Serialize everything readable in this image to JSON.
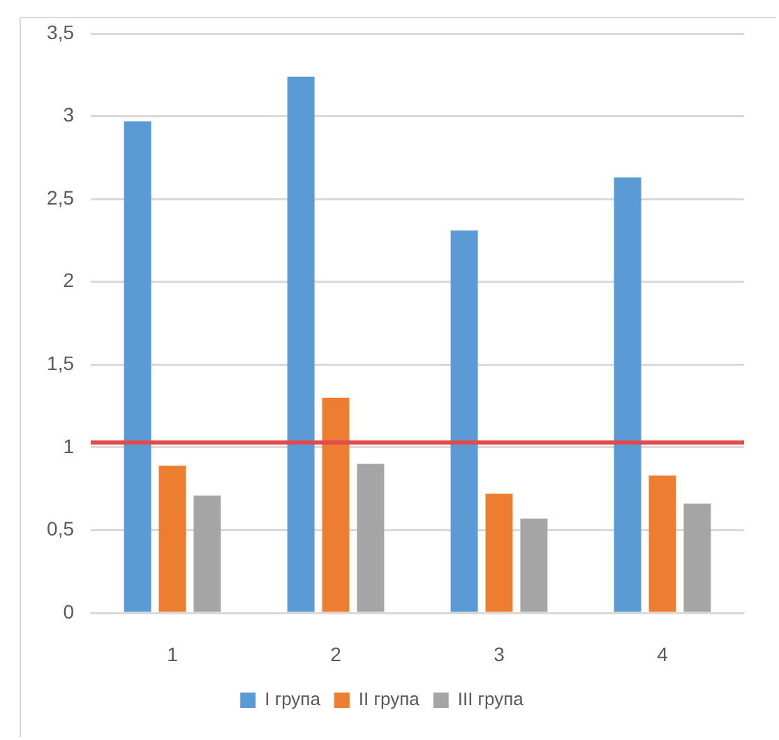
{
  "chart_data": {
    "type": "bar",
    "categories": [
      "1",
      "2",
      "3",
      "4"
    ],
    "series": [
      {
        "name": "I група",
        "color": "#5b9bd5",
        "values": [
          2.97,
          3.24,
          2.31,
          2.63
        ]
      },
      {
        "name": "II група",
        "color": "#ed7d31",
        "values": [
          0.89,
          1.3,
          0.72,
          0.83
        ]
      },
      {
        "name": "III група",
        "color": "#a5a5a5",
        "values": [
          0.71,
          0.9,
          0.57,
          0.66
        ]
      }
    ],
    "ylim": [
      0,
      3.5
    ],
    "yticks": [
      0,
      {
        "value": 0.5,
        "label": "0,5"
      },
      1,
      {
        "value": 1.5,
        "label": "1,5"
      },
      2,
      {
        "value": 2.5,
        "label": "2,5"
      },
      3,
      {
        "value": 3.5,
        "label": "3,5"
      }
    ],
    "ref_lines": [
      {
        "axis": "y",
        "value": 1.03,
        "color": "#e04b4b"
      }
    ],
    "grid": "y",
    "legend": "bottom"
  }
}
